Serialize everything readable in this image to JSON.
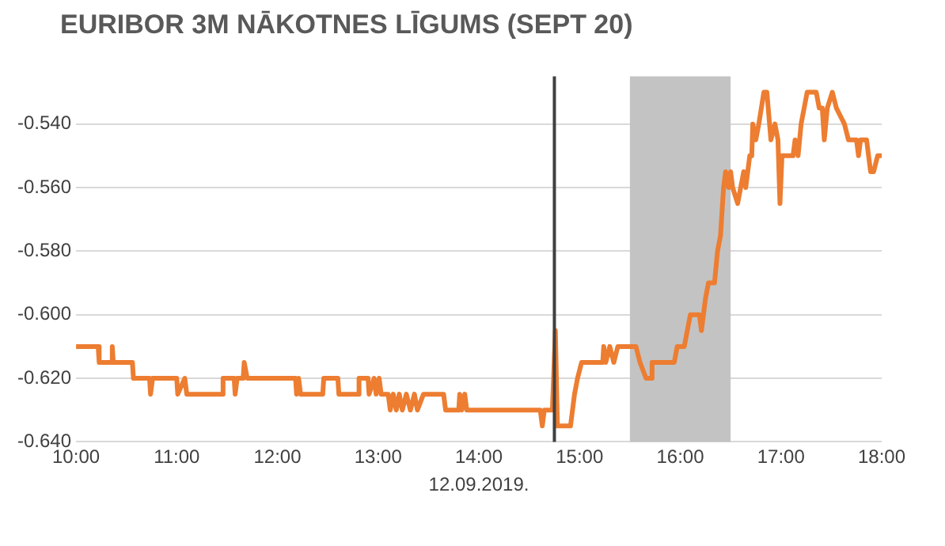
{
  "chart_data": {
    "type": "line",
    "title": "EURIBOR 3M NĀKOTNES LĪGUMS (SEPT 20)",
    "xlabel": "12.09.2019.",
    "x": [
      10.0,
      10.22,
      10.23,
      10.35,
      10.36,
      10.37,
      10.56,
      10.57,
      10.73,
      10.74,
      10.76,
      11.0,
      11.01,
      11.08,
      11.1,
      11.45,
      11.46,
      11.57,
      11.58,
      11.6,
      11.66,
      11.67,
      11.7,
      12.18,
      12.19,
      12.21,
      12.23,
      12.45,
      12.46,
      12.6,
      12.61,
      12.8,
      12.81,
      12.9,
      12.91,
      12.96,
      12.98,
      13.01,
      13.03,
      13.1,
      13.12,
      13.15,
      13.18,
      13.21,
      13.24,
      13.28,
      13.32,
      13.36,
      13.39,
      13.45,
      13.65,
      13.67,
      13.8,
      13.81,
      13.83,
      13.86,
      13.88,
      14.61,
      14.63,
      14.65,
      14.73,
      14.76,
      14.78,
      14.91,
      14.95,
      14.98,
      15.02,
      15.23,
      15.24,
      15.26,
      15.3,
      15.34,
      15.38,
      15.56,
      15.6,
      15.66,
      15.71,
      15.72,
      15.94,
      15.97,
      16.04,
      16.07,
      16.1,
      16.19,
      16.21,
      16.25,
      16.28,
      16.34,
      16.37,
      16.4,
      16.43,
      16.45,
      16.48,
      16.5,
      16.52,
      16.57,
      16.6,
      16.63,
      16.65,
      16.69,
      16.71,
      16.72,
      16.75,
      16.78,
      16.83,
      16.86,
      16.9,
      16.94,
      16.97,
      16.99,
      17.01,
      17.12,
      17.14,
      17.17,
      17.2,
      17.23,
      17.26,
      17.35,
      17.38,
      17.41,
      17.43,
      17.46,
      17.51,
      17.55,
      17.63,
      17.67,
      17.75,
      17.77,
      17.79,
      17.85,
      17.89,
      17.92,
      17.96,
      18.0
    ],
    "series": [
      {
        "color": "#ed7d31",
        "values": [
          -0.61,
          -0.61,
          -0.615,
          -0.615,
          -0.61,
          -0.615,
          -0.615,
          -0.62,
          -0.62,
          -0.625,
          -0.62,
          -0.62,
          -0.625,
          -0.62,
          -0.625,
          -0.625,
          -0.62,
          -0.62,
          -0.625,
          -0.62,
          -0.62,
          -0.615,
          -0.62,
          -0.62,
          -0.625,
          -0.62,
          -0.625,
          -0.625,
          -0.62,
          -0.62,
          -0.625,
          -0.625,
          -0.62,
          -0.62,
          -0.625,
          -0.62,
          -0.625,
          -0.62,
          -0.625,
          -0.625,
          -0.63,
          -0.625,
          -0.63,
          -0.625,
          -0.63,
          -0.625,
          -0.63,
          -0.625,
          -0.63,
          -0.625,
          -0.625,
          -0.63,
          -0.63,
          -0.625,
          -0.63,
          -0.625,
          -0.63,
          -0.63,
          -0.635,
          -0.63,
          -0.63,
          -0.605,
          -0.635,
          -0.635,
          -0.625,
          -0.62,
          -0.615,
          -0.615,
          -0.61,
          -0.615,
          -0.61,
          -0.615,
          -0.61,
          -0.61,
          -0.615,
          -0.62,
          -0.62,
          -0.615,
          -0.615,
          -0.61,
          -0.61,
          -0.605,
          -0.6,
          -0.6,
          -0.605,
          -0.595,
          -0.59,
          -0.59,
          -0.58,
          -0.575,
          -0.56,
          -0.555,
          -0.56,
          -0.555,
          -0.56,
          -0.565,
          -0.56,
          -0.555,
          -0.56,
          -0.55,
          -0.55,
          -0.54,
          -0.545,
          -0.54,
          -0.53,
          -0.53,
          -0.545,
          -0.54,
          -0.545,
          -0.565,
          -0.55,
          -0.55,
          -0.545,
          -0.55,
          -0.54,
          -0.535,
          -0.53,
          -0.53,
          -0.535,
          -0.535,
          -0.545,
          -0.535,
          -0.53,
          -0.535,
          -0.54,
          -0.545,
          -0.545,
          -0.55,
          -0.545,
          -0.545,
          -0.555,
          -0.555,
          -0.55,
          -0.55
        ]
      }
    ],
    "xlim": [
      10,
      18
    ],
    "xticks": [
      {
        "value": 10,
        "label": "10:00"
      },
      {
        "value": 11,
        "label": "11:00"
      },
      {
        "value": 12,
        "label": "12:00"
      },
      {
        "value": 13,
        "label": "13:00"
      },
      {
        "value": 14,
        "label": "14:00"
      },
      {
        "value": 15,
        "label": "15:00"
      },
      {
        "value": 16,
        "label": "16:00"
      },
      {
        "value": 17,
        "label": "17:00"
      },
      {
        "value": 18,
        "label": "18:00"
      }
    ],
    "ylim": [
      -0.64,
      -0.525
    ],
    "yticks": [
      {
        "value": -0.64,
        "label": "-0.640"
      },
      {
        "value": -0.62,
        "label": "-0.620"
      },
      {
        "value": -0.6,
        "label": "-0.600"
      },
      {
        "value": -0.58,
        "label": "-0.580"
      },
      {
        "value": -0.56,
        "label": "-0.560"
      },
      {
        "value": -0.54,
        "label": "-0.540"
      }
    ],
    "ref_lines": [
      {
        "axis": "x",
        "value": 14.75,
        "color": "#404040"
      }
    ],
    "bands": [
      {
        "axis": "x",
        "from": 15.5,
        "to": 16.5,
        "color": "#c3c3c3"
      }
    ],
    "grid": "y",
    "legend": false,
    "marker": "none",
    "line_style": "solid"
  }
}
